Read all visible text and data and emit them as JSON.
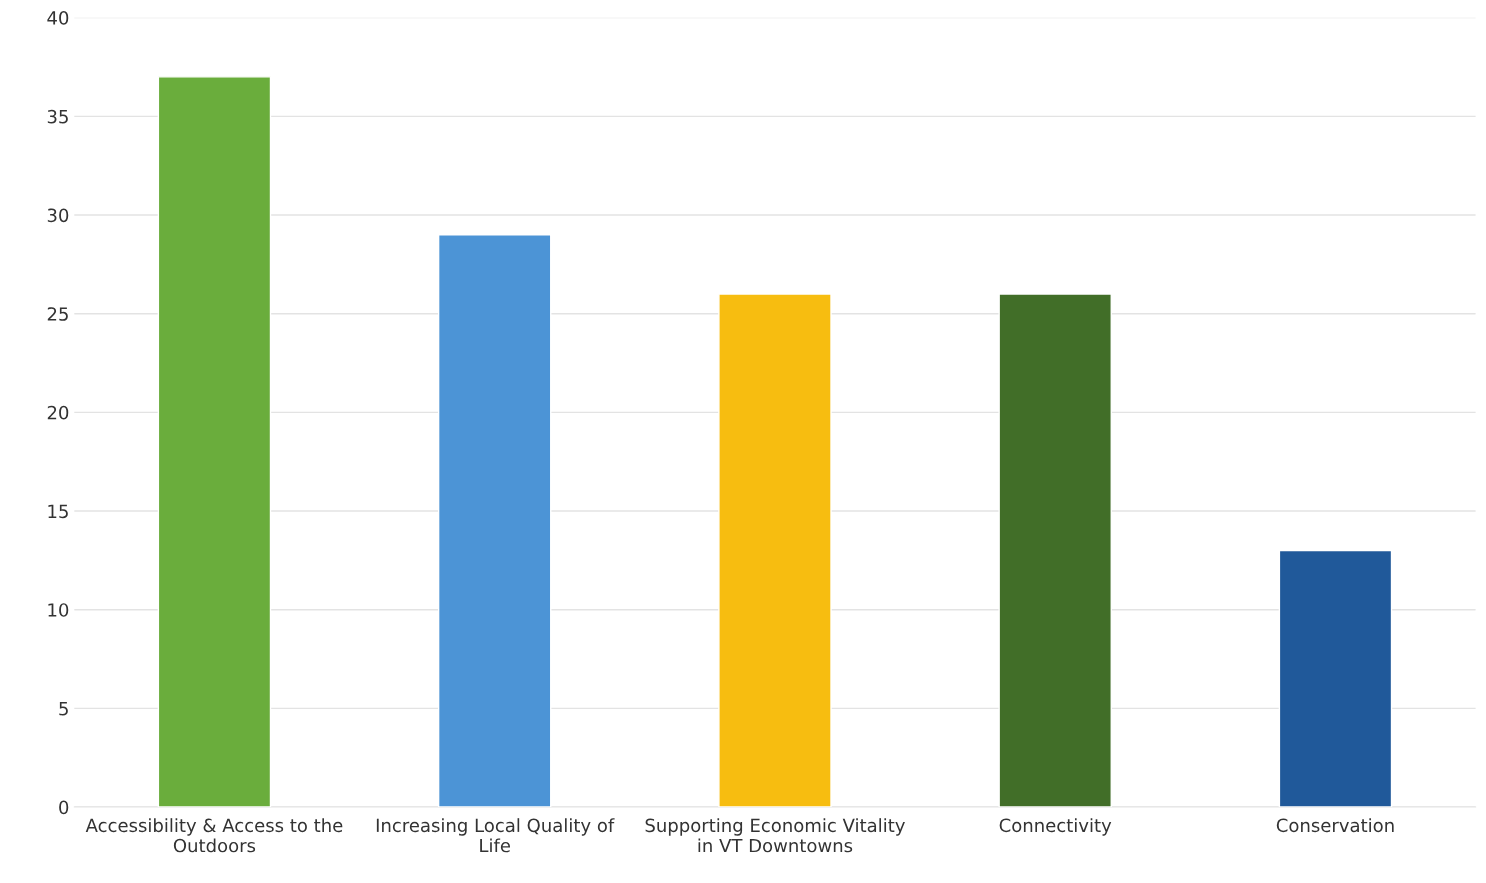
{
  "chart_data": {
    "type": "bar",
    "categories": [
      "Accessibility & Access to the Outdoors",
      "Increasing Local Quality of Life",
      "Supporting Economic Vitality in VT Downtowns",
      "Connectivity",
      "Conservation"
    ],
    "values": [
      37,
      29,
      26,
      26,
      13
    ],
    "colors": [
      "#6aad3c",
      "#4c94d6",
      "#f7bd10",
      "#416e28",
      "#20599a"
    ],
    "ylim": [
      0,
      40
    ],
    "yticks": [
      0,
      5,
      10,
      15,
      20,
      25,
      30,
      35,
      40
    ],
    "grid": "y",
    "legend": false
  }
}
